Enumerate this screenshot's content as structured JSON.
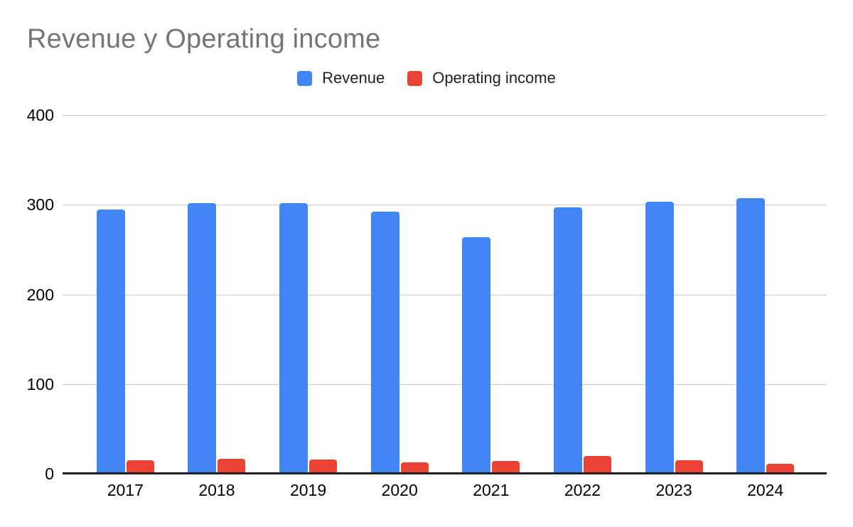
{
  "title": {
    "text": "Revenue y Operating income",
    "color": "#757575"
  },
  "chart_data": {
    "type": "bar",
    "title": "Revenue y Operating income",
    "categories": [
      "2017",
      "2018",
      "2019",
      "2020",
      "2021",
      "2022",
      "2023",
      "2024"
    ],
    "series": [
      {
        "name": "Revenue",
        "color": "#4285F4",
        "values": [
          295,
          302,
          302,
          292,
          264,
          297,
          303,
          307
        ]
      },
      {
        "name": "Operating income",
        "color": "#EA4335",
        "values": [
          15,
          17,
          16,
          13,
          14,
          20,
          15,
          11
        ]
      }
    ],
    "xlabel": "",
    "ylabel": "",
    "ylim": [
      0,
      400
    ],
    "yticks": [
      0,
      100,
      200,
      300,
      400
    ],
    "grid": "horizontal",
    "legend_position": "top-center",
    "colors": {
      "gridline": "#cccccc",
      "axis_line": "#212121",
      "tick_label": "#000000",
      "legend_label": "#212121"
    }
  }
}
